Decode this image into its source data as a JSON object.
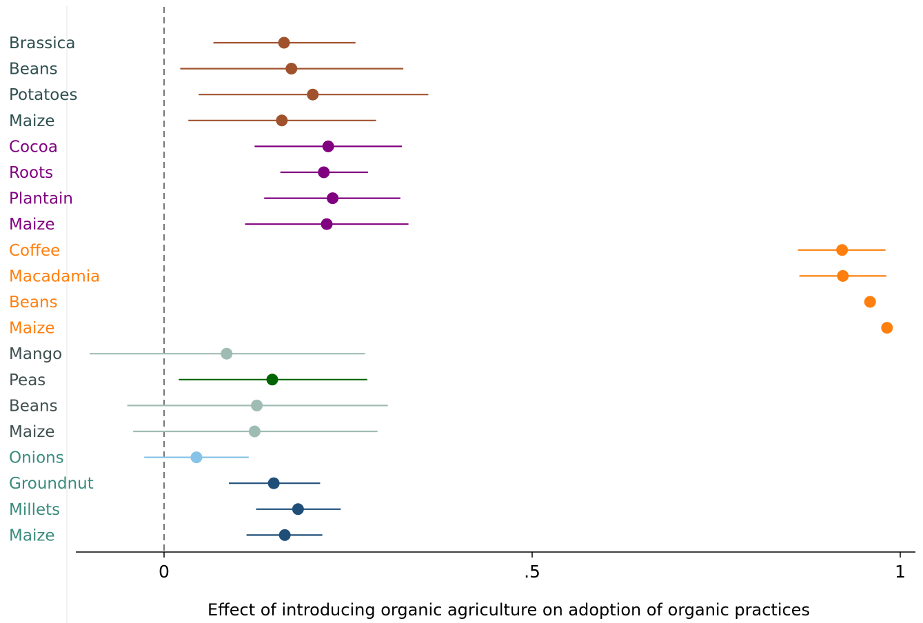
{
  "chart_data": {
    "type": "scatter",
    "title": "",
    "xlabel": "Effect of introducing organic agriculture on adoption of organic practices",
    "ylabel": "",
    "xlim": [
      -0.12,
      1.02
    ],
    "x_ticks": [
      {
        "value": 0,
        "label": "0"
      },
      {
        "value": 0.5,
        "label": ".5"
      },
      {
        "value": 1,
        "label": "1"
      }
    ],
    "reference_line": {
      "x": 0,
      "style": "dashed"
    },
    "grid": false,
    "legend": "none",
    "items": [
      {
        "label": "Brassica",
        "estimate": 0.163,
        "ci_low": 0.067,
        "ci_high": 0.26,
        "color": "#a0522d",
        "label_color": "#2f4f4f"
      },
      {
        "label": "Beans",
        "estimate": 0.173,
        "ci_low": 0.022,
        "ci_high": 0.325,
        "color": "#a0522d",
        "label_color": "#2f4f4f"
      },
      {
        "label": "Potatoes",
        "estimate": 0.202,
        "ci_low": 0.047,
        "ci_high": 0.359,
        "color": "#a0522d",
        "label_color": "#2f4f4f"
      },
      {
        "label": "Maize",
        "estimate": 0.16,
        "ci_low": 0.033,
        "ci_high": 0.288,
        "color": "#a0522d",
        "label_color": "#2f4f4f"
      },
      {
        "label": "Cocoa",
        "estimate": 0.223,
        "ci_low": 0.123,
        "ci_high": 0.323,
        "color": "#800080",
        "label_color": "#800080"
      },
      {
        "label": "Roots",
        "estimate": 0.217,
        "ci_low": 0.158,
        "ci_high": 0.277,
        "color": "#800080",
        "label_color": "#800080"
      },
      {
        "label": "Plantain",
        "estimate": 0.229,
        "ci_low": 0.136,
        "ci_high": 0.321,
        "color": "#800080",
        "label_color": "#800080"
      },
      {
        "label": "Maize",
        "estimate": 0.221,
        "ci_low": 0.11,
        "ci_high": 0.332,
        "color": "#800080",
        "label_color": "#800080"
      },
      {
        "label": "Coffee",
        "estimate": 0.921,
        "ci_low": 0.861,
        "ci_high": 0.98,
        "color": "#ff7f0e",
        "label_color": "#ff7f0e"
      },
      {
        "label": "Macadamia",
        "estimate": 0.922,
        "ci_low": 0.863,
        "ci_high": 0.981,
        "color": "#ff7f0e",
        "label_color": "#ff7f0e"
      },
      {
        "label": "Beans",
        "estimate": 0.959,
        "ci_low": null,
        "ci_high": null,
        "color": "#ff7f0e",
        "label_color": "#ff7f0e"
      },
      {
        "label": "Maize",
        "estimate": 0.982,
        "ci_low": null,
        "ci_high": null,
        "color": "#ff7f0e",
        "label_color": "#ff7f0e"
      },
      {
        "label": "Mango",
        "estimate": 0.085,
        "ci_low": -0.101,
        "ci_high": 0.273,
        "color": "#9fbcb4",
        "label_color": "#3f4f4f"
      },
      {
        "label": "Peas",
        "estimate": 0.147,
        "ci_low": 0.02,
        "ci_high": 0.276,
        "color": "#006400",
        "label_color": "#3f4f4f"
      },
      {
        "label": "Beans",
        "estimate": 0.126,
        "ci_low": -0.05,
        "ci_high": 0.304,
        "color": "#9fbcb4",
        "label_color": "#3f4f4f"
      },
      {
        "label": "Maize",
        "estimate": 0.123,
        "ci_low": -0.042,
        "ci_high": 0.29,
        "color": "#9fbcb4",
        "label_color": "#3f4f4f"
      },
      {
        "label": "Onions",
        "estimate": 0.044,
        "ci_low": -0.027,
        "ci_high": 0.115,
        "color": "#87c3e8",
        "label_color": "#3a8b7d"
      },
      {
        "label": "Groundnut",
        "estimate": 0.149,
        "ci_low": 0.088,
        "ci_high": 0.212,
        "color": "#1f4e79",
        "label_color": "#3a8b7d"
      },
      {
        "label": "Millets",
        "estimate": 0.182,
        "ci_low": 0.125,
        "ci_high": 0.24,
        "color": "#1f4e79",
        "label_color": "#3a8b7d"
      },
      {
        "label": "Maize",
        "estimate": 0.164,
        "ci_low": 0.112,
        "ci_high": 0.215,
        "color": "#1f4e79",
        "label_color": "#3a8b7d"
      }
    ]
  }
}
